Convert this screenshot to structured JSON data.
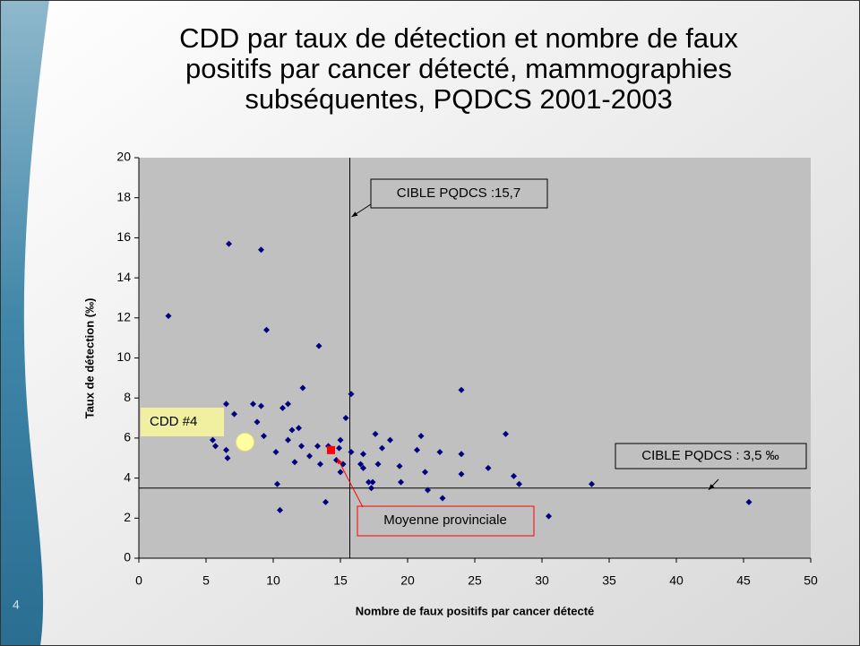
{
  "slide_number": "4",
  "chart_data": {
    "type": "scatter",
    "title": [
      "CDD par taux de détection et nombre de faux",
      "positifs par cancer détecté, mammographies",
      "subséquentes, PQDCS 2001-2003"
    ],
    "xlabel": "Nombre de faux positifs par cancer détecté",
    "ylabel": "Taux de détection (‰)",
    "xlim": [
      0,
      50
    ],
    "xticks": [
      0,
      5,
      10,
      15,
      20,
      25,
      30,
      35,
      40,
      45,
      50
    ],
    "ylim": [
      0,
      20
    ],
    "yticks": [
      0,
      2,
      4,
      6,
      8,
      10,
      12,
      14,
      16,
      18,
      20
    ],
    "series": [
      {
        "color": "#000080",
        "x": [
          2.2,
          6.7,
          9.1,
          9.5,
          13.4,
          12.2,
          15.8,
          24,
          6.5,
          7.1,
          8.5,
          9.1,
          10.7,
          11.1,
          8.8,
          15.4,
          27.3,
          11.4,
          11.9,
          11.1,
          9.3,
          5.5,
          5.7,
          6.5,
          6.6,
          10.2,
          12.1,
          11.6,
          12.7,
          13.3,
          13.5,
          14.1,
          15,
          14.9,
          15.2,
          15.8,
          16.5,
          16.7,
          16.7,
          17.1,
          17.3,
          17.4,
          17.6,
          18.1,
          18.7,
          17.8,
          19.4,
          19.5,
          21,
          20.7,
          21.3,
          21.5,
          22.4,
          22.6,
          24,
          24,
          26,
          27.9,
          28.3,
          30.5,
          33.7,
          45.4,
          10.3,
          10.5,
          13.9,
          14.7,
          15
        ],
        "values": [
          12.1,
          15.7,
          15.4,
          11.4,
          10.6,
          8.5,
          8.2,
          8.4,
          7.7,
          7.2,
          7.7,
          7.6,
          7.5,
          7.7,
          6.8,
          7.0,
          6.2,
          6.4,
          6.5,
          5.9,
          6.1,
          5.9,
          5.6,
          5.4,
          5.0,
          5.3,
          5.6,
          4.8,
          5.1,
          5.6,
          4.7,
          5.6,
          5.9,
          5.5,
          4.7,
          5.3,
          4.7,
          5.2,
          4.5,
          3.8,
          3.5,
          3.8,
          6.2,
          5.5,
          5.9,
          4.7,
          4.6,
          3.8,
          6.1,
          5.4,
          4.3,
          3.4,
          5.3,
          3.0,
          5.2,
          4.2,
          4.5,
          4.1,
          3.7,
          2.1,
          3.7,
          2.8,
          3.7,
          2.4,
          2.8,
          4.9,
          4.3
        ]
      }
    ],
    "average": {
      "label": "Moyenne provinciale",
      "x": 14.3,
      "y": 5.4,
      "color": "#ff0000"
    },
    "highlight": {
      "label": "CDD #4",
      "x": 7.9,
      "y": 5.8
    },
    "vline": {
      "label": "CIBLE PQDCS :15,7",
      "value": 15.7
    },
    "hline": {
      "label": "CIBLE PQDCS : 3,5 ‰",
      "value": 3.5
    }
  }
}
